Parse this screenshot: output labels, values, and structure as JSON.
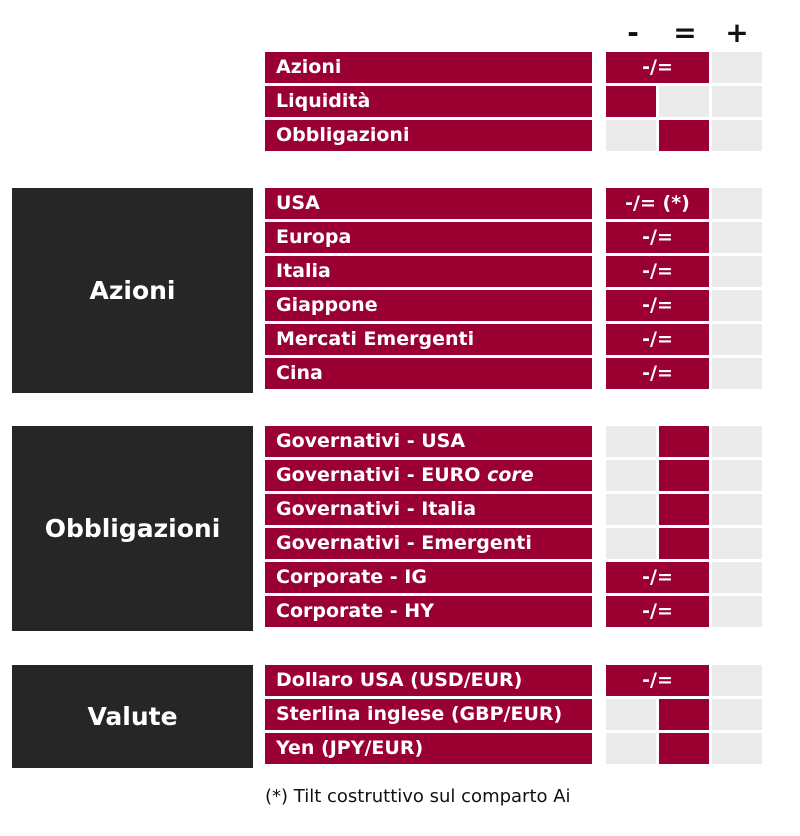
{
  "header": {
    "minus": "-",
    "equal": "=",
    "plus": "+"
  },
  "span_text": "-/=",
  "footnote": "(*) Tilt costruttivo sul comparto Ai",
  "colors": {
    "accent": "#9b0033",
    "group_bg": "#262626",
    "empty_cell": "#ebebeb"
  },
  "groups": [
    {
      "name": "",
      "rows": [
        {
          "label": "Azioni",
          "rating": "-/="
        },
        {
          "label": "Liquidità",
          "rating": "-"
        },
        {
          "label": "Obbligazioni",
          "rating": "="
        }
      ]
    },
    {
      "name": "Azioni",
      "rows": [
        {
          "label": "USA",
          "rating": "-/=",
          "text": "-/= (*)"
        },
        {
          "label": "Europa",
          "rating": "-/="
        },
        {
          "label": "Italia",
          "rating": "-/="
        },
        {
          "label": "Giappone",
          "rating": "-/="
        },
        {
          "label": "Mercati Emergenti",
          "rating": "-/="
        },
        {
          "label": "Cina",
          "rating": "-/="
        }
      ]
    },
    {
      "name": "Obbligazioni",
      "rows": [
        {
          "label": "Governativi - USA",
          "rating": "="
        },
        {
          "label": "Governativi - EURO ",
          "label_italic": "core",
          "rating": "="
        },
        {
          "label": "Governativi - Italia",
          "rating": "="
        },
        {
          "label": "Governativi - Emergenti",
          "rating": "="
        },
        {
          "label": "Corporate - IG",
          "rating": "-/="
        },
        {
          "label": "Corporate - HY",
          "rating": "-/="
        }
      ]
    },
    {
      "name": "Valute",
      "rows": [
        {
          "label": "Dollaro USA (USD/EUR)",
          "rating": "-/="
        },
        {
          "label": "Sterlina inglese (GBP/EUR)",
          "rating": "="
        },
        {
          "label": "Yen (JPY/EUR)",
          "rating": "="
        }
      ]
    }
  ]
}
